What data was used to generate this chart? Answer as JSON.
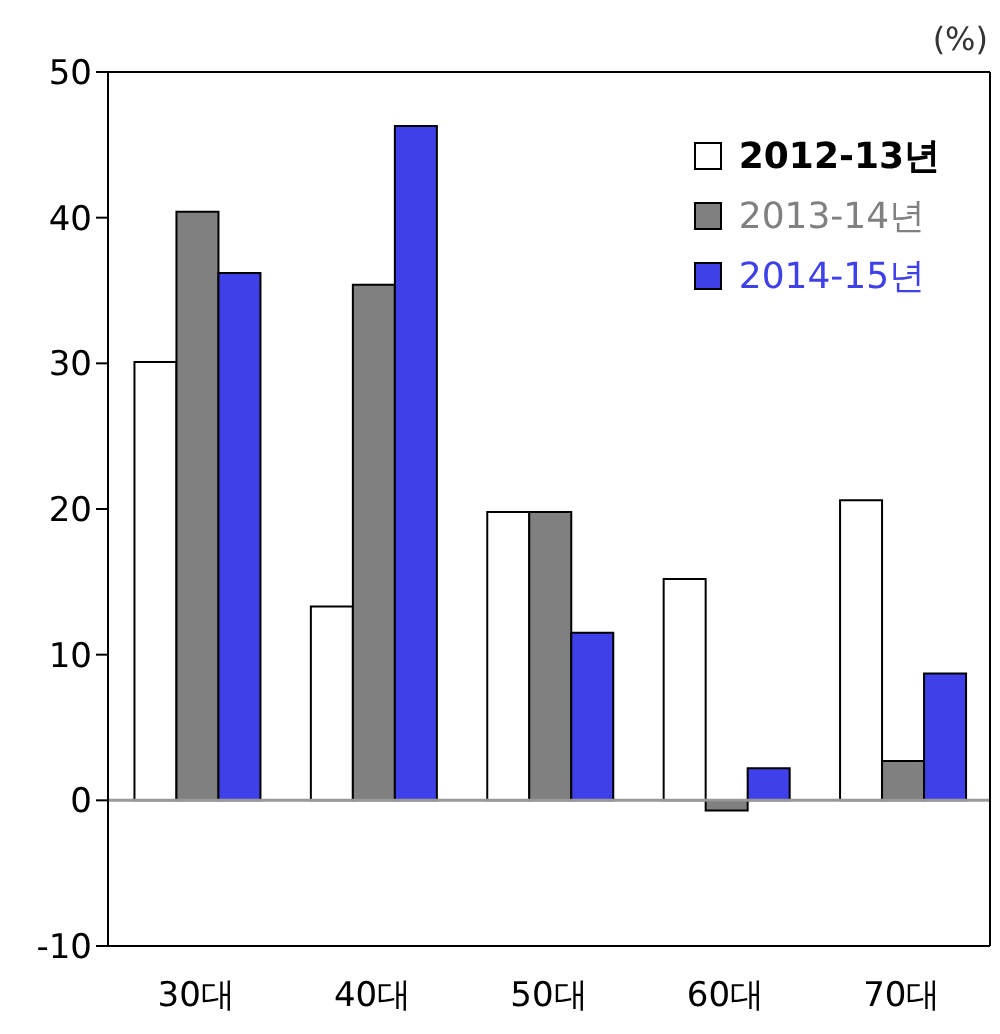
{
  "chart_data": {
    "type": "bar",
    "categories": [
      "30대",
      "40대",
      "50대",
      "60대",
      "70대"
    ],
    "series": [
      {
        "name": "2012-13년",
        "color": "#ffffff",
        "values": [
          30.1,
          13.3,
          19.8,
          15.2,
          20.6
        ]
      },
      {
        "name": "2013-14년",
        "color": "#808080",
        "values": [
          40.4,
          35.4,
          19.8,
          -0.7,
          2.7
        ]
      },
      {
        "name": "2014-15년",
        "color": "#4040e8",
        "values": [
          36.2,
          46.3,
          11.5,
          2.2,
          8.7
        ]
      }
    ],
    "ylim": [
      -10,
      50
    ],
    "yticks": [
      -10,
      0,
      10,
      20,
      30,
      40,
      50
    ],
    "grid": false,
    "legend": "top right",
    "ref_lines": [
      {
        "axis": "y",
        "value": 0,
        "color": "#999999"
      }
    ],
    "annotations": [
      "(%)"
    ]
  }
}
